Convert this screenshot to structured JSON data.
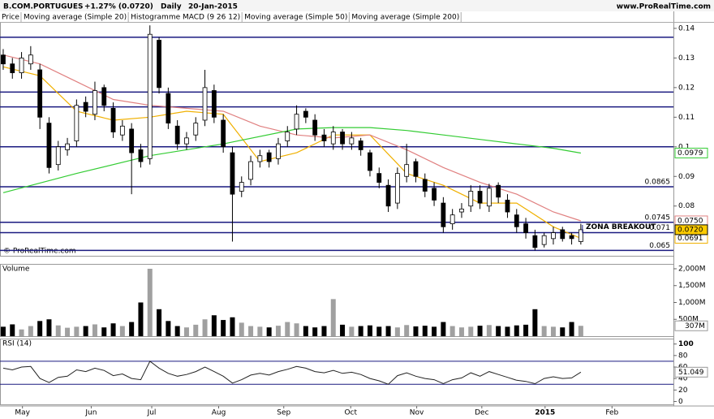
{
  "header": {
    "symbol": "B.COM.PORTUGUES",
    "change": "+1.27% (0.0720)",
    "period": "Daily",
    "date": "20-Jan-2015",
    "site": "www.ProRealTime.com",
    "copyright": "© ProRealTime.com"
  },
  "chart_data": [
    {
      "type": "candlestick",
      "title": "Price",
      "extra_legend": "Histogramme MACD (9 26 12)",
      "open": [
        0.131,
        0.128,
        0.125,
        0.128,
        0.126,
        0.108,
        0.094,
        0.099,
        0.102,
        0.115,
        0.111,
        0.12,
        0.113,
        0.104,
        0.106,
        0.099,
        0.096,
        0.136,
        0.118,
        0.107,
        0.101,
        0.104,
        0.109,
        0.119,
        0.109,
        0.098,
        0.085,
        0.089,
        0.095,
        0.098,
        0.096,
        0.102,
        0.106,
        0.112,
        0.109,
        0.104,
        0.101,
        0.105,
        0.101,
        0.102,
        0.098,
        0.091,
        0.087,
        0.081,
        0.09,
        0.095,
        0.089,
        0.086,
        0.081,
        0.074,
        0.078,
        0.08,
        0.085,
        0.08,
        0.087,
        0.082,
        0.077,
        0.074,
        0.07,
        0.067,
        0.069,
        0.072,
        0.07,
        0.068
      ],
      "high": [
        0.133,
        0.13,
        0.132,
        0.134,
        0.128,
        0.11,
        0.102,
        0.103,
        0.116,
        0.117,
        0.122,
        0.121,
        0.115,
        0.109,
        0.108,
        0.101,
        0.141,
        0.137,
        0.12,
        0.109,
        0.105,
        0.11,
        0.126,
        0.121,
        0.111,
        0.1,
        0.09,
        0.097,
        0.099,
        0.099,
        0.103,
        0.107,
        0.114,
        0.113,
        0.111,
        0.106,
        0.107,
        0.106,
        0.105,
        0.103,
        0.099,
        0.093,
        0.089,
        0.093,
        0.101,
        0.096,
        0.091,
        0.088,
        0.083,
        0.079,
        0.081,
        0.087,
        0.087,
        0.0875,
        0.088,
        0.084,
        0.079,
        0.076,
        0.072,
        0.071,
        0.073,
        0.073,
        0.071,
        0.074
      ],
      "low": [
        0.126,
        0.123,
        0.123,
        0.126,
        0.106,
        0.091,
        0.092,
        0.097,
        0.1,
        0.11,
        0.109,
        0.112,
        0.103,
        0.102,
        0.084,
        0.093,
        0.094,
        0.118,
        0.106,
        0.099,
        0.099,
        0.102,
        0.107,
        0.108,
        0.098,
        0.068,
        0.083,
        0.087,
        0.093,
        0.093,
        0.094,
        0.1,
        0.104,
        0.108,
        0.102,
        0.1,
        0.099,
        0.099,
        0.099,
        0.097,
        0.09,
        0.086,
        0.078,
        0.079,
        0.088,
        0.088,
        0.083,
        0.08,
        0.071,
        0.072,
        0.076,
        0.078,
        0.079,
        0.078,
        0.081,
        0.076,
        0.071,
        0.069,
        0.065,
        0.066,
        0.067,
        0.068,
        0.067,
        0.067
      ],
      "close": [
        0.128,
        0.125,
        0.13,
        0.131,
        0.11,
        0.093,
        0.1,
        0.101,
        0.114,
        0.112,
        0.119,
        0.114,
        0.105,
        0.107,
        0.098,
        0.095,
        0.138,
        0.12,
        0.108,
        0.101,
        0.103,
        0.108,
        0.12,
        0.11,
        0.1,
        0.084,
        0.088,
        0.095,
        0.097,
        0.095,
        0.101,
        0.105,
        0.111,
        0.11,
        0.104,
        0.102,
        0.105,
        0.101,
        0.103,
        0.099,
        0.092,
        0.088,
        0.08,
        0.091,
        0.094,
        0.09,
        0.085,
        0.082,
        0.073,
        0.077,
        0.079,
        0.085,
        0.081,
        0.086,
        0.083,
        0.078,
        0.073,
        0.071,
        0.066,
        0.07,
        0.071,
        0.069,
        0.069,
        0.072
      ],
      "last_label": "0.0720",
      "series": [
        {
          "name": "Moving average (Simple 20)",
          "color": "#f0b000",
          "x": [
            0,
            4,
            8,
            12,
            16,
            20,
            24,
            28,
            32,
            36,
            40,
            44,
            48,
            52,
            56,
            60,
            63
          ],
          "values": [
            0.127,
            0.124,
            0.112,
            0.109,
            0.11,
            0.112,
            0.111,
            0.095,
            0.098,
            0.104,
            0.104,
            0.091,
            0.087,
            0.081,
            0.081,
            0.073,
            0.0691
          ],
          "last_label": "0.0691"
        },
        {
          "name": "Moving average (Simple 50)",
          "color": "#e08080",
          "x": [
            0,
            4,
            8,
            12,
            16,
            20,
            24,
            28,
            32,
            36,
            40,
            44,
            48,
            52,
            56,
            60,
            63
          ],
          "values": [
            0.131,
            0.128,
            0.122,
            0.116,
            0.114,
            0.113,
            0.112,
            0.107,
            0.104,
            0.103,
            0.104,
            0.099,
            0.093,
            0.088,
            0.084,
            0.078,
            0.075
          ],
          "last_label": "0.0750"
        },
        {
          "name": "Moving average (Simple 200)",
          "color": "#33cc33",
          "x": [
            0,
            8,
            16,
            24,
            32,
            36,
            40,
            44,
            48,
            52,
            56,
            60,
            63
          ],
          "values": [
            0.0845,
            0.091,
            0.097,
            0.101,
            0.106,
            0.1065,
            0.1065,
            0.1055,
            0.104,
            0.1025,
            0.101,
            0.0995,
            0.0979
          ],
          "last_label": "0.0979"
        }
      ],
      "levels": [
        0.137,
        0.1185,
        0.1135,
        0.1,
        0.0865,
        0.0745,
        0.071,
        0.065
      ],
      "level_labels": [
        null,
        null,
        null,
        null,
        "0.0865",
        "0.0745",
        "0.071",
        "0.065"
      ],
      "annotations": [
        "ZONA BREAKOUT"
      ],
      "ylim": [
        0.0632,
        0.1419
      ],
      "yticks": [
        0.08,
        0.09,
        0.1,
        0.11,
        0.12,
        0.13,
        0.14
      ]
    },
    {
      "type": "bar",
      "title": "Volume",
      "color": "#a0a0a0",
      "down_color": "#000000",
      "values": [
        280,
        350,
        200,
        300,
        450,
        500,
        320,
        250,
        280,
        300,
        350,
        260,
        380,
        300,
        420,
        1000,
        2000,
        800,
        450,
        300,
        260,
        340,
        500,
        620,
        480,
        560,
        400,
        300,
        280,
        260,
        310,
        420,
        380,
        300,
        260,
        300,
        1100,
        340,
        280,
        300,
        320,
        280,
        300,
        260,
        330,
        290,
        310,
        280,
        420,
        300,
        260,
        280,
        310,
        330,
        300,
        280,
        320,
        340,
        800,
        300,
        280,
        260,
        420,
        307
      ],
      "last_label": "307M",
      "ylim": [
        0,
        2120
      ],
      "yticks": [
        {
          "value": 500,
          "label": "500M"
        },
        {
          "value": 1000,
          "label": "1,000M"
        },
        {
          "value": 1500,
          "label": "1,500M"
        },
        {
          "value": 2000,
          "label": "2,000M"
        }
      ]
    },
    {
      "type": "line",
      "title": "RSI (14)",
      "color": "#222222",
      "values": [
        58,
        55,
        60,
        61,
        40,
        33,
        42,
        44,
        55,
        52,
        58,
        54,
        45,
        48,
        40,
        38,
        70,
        58,
        49,
        44,
        47,
        52,
        60,
        52,
        44,
        32,
        38,
        46,
        49,
        46,
        52,
        56,
        61,
        58,
        52,
        50,
        54,
        49,
        51,
        47,
        40,
        36,
        30,
        45,
        50,
        44,
        40,
        38,
        31,
        38,
        41,
        50,
        44,
        52,
        47,
        42,
        37,
        35,
        31,
        40,
        43,
        40,
        41,
        51.049
      ],
      "levels": [
        70,
        30
      ],
      "ylim": [
        -5,
        108
      ],
      "yticks": [
        0,
        20,
        40,
        60,
        80,
        100
      ],
      "xlim": [
        -0.35,
        73.1
      ],
      "xticks": [
        {
          "value": 2.1,
          "label": "May"
        },
        {
          "value": 9.6,
          "label": "Jun"
        },
        {
          "value": 16.2,
          "label": "Jul"
        },
        {
          "value": 23.5,
          "label": "Aug"
        },
        {
          "value": 30.6,
          "label": "Sep"
        },
        {
          "value": 37.9,
          "label": "Oct"
        },
        {
          "value": 45.1,
          "label": "Nov"
        },
        {
          "value": 52.2,
          "label": "Dec"
        },
        {
          "value": 59.1,
          "label": "2015"
        },
        {
          "value": 66.4,
          "label": "Feb"
        }
      ]
    }
  ]
}
